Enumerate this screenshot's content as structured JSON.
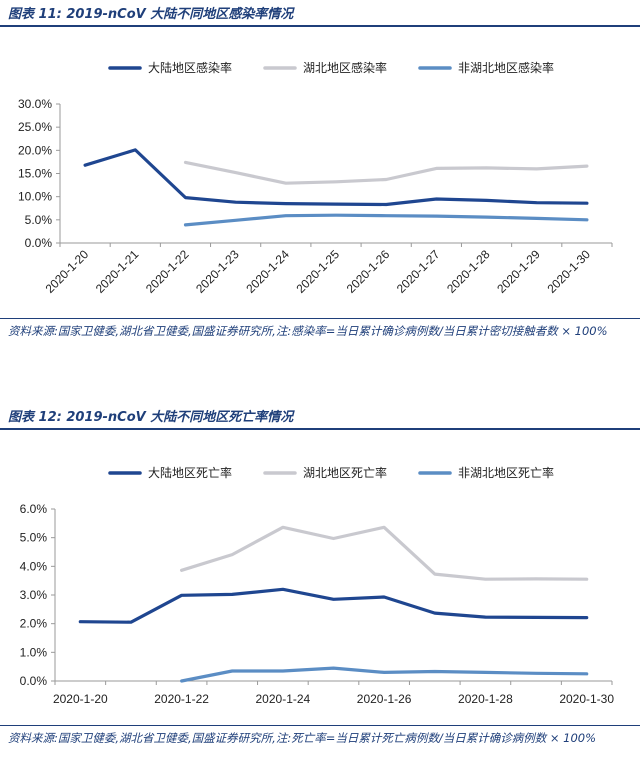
{
  "figures": [
    {
      "title": "图表 11:  2019-nCoV 大陆不同地区感染率情况",
      "source": "资料来源:国家卫健委,湖北省卫健委,国盛证券研究所,注:感染率=当日累计确诊病例数/当日累计密切接触者数 × 100%"
    },
    {
      "title": "图表 12:  2019-nCoV 大陆不同地区死亡率情况",
      "source": "资料来源:国家卫健委,湖北省卫健委,国盛证券研究所,注:死亡率=当日累计死亡病例数/当日累计确诊病例数 × 100%"
    }
  ],
  "colors": {
    "mainland": "#1f4690",
    "hubei": "#c9c9cf",
    "non_hubei": "#5b8dc4",
    "rule": "#1f3f7a"
  },
  "chart_data": [
    {
      "type": "line",
      "title": "",
      "xlabel": "",
      "ylabel": "",
      "categories": [
        "2020-1-20",
        "2020-1-21",
        "2020-1-22",
        "2020-1-23",
        "2020-1-24",
        "2020-1-25",
        "2020-1-26",
        "2020-1-27",
        "2020-1-28",
        "2020-1-29",
        "2020-1-30"
      ],
      "tick_labels": [
        "2020-1-20",
        "2020-1-21",
        "2020-1-22",
        "2020-1-23",
        "2020-1-24",
        "2020-1-25",
        "2020-1-26",
        "2020-1-27",
        "2020-1-28",
        "2020-1-29",
        "2020-1-30"
      ],
      "ylim": [
        0,
        30
      ],
      "yticks": [
        "0.0%",
        "5.0%",
        "10.0%",
        "15.0%",
        "20.0%",
        "25.0%",
        "30.0%"
      ],
      "legend_position": "top",
      "grid": false,
      "series": [
        {
          "name": "大陆地区感染率",
          "color_key": "mainland",
          "values": [
            16.8,
            20.1,
            9.8,
            8.8,
            8.5,
            8.4,
            8.3,
            9.5,
            9.2,
            8.7,
            8.6
          ]
        },
        {
          "name": "湖北地区感染率",
          "color_key": "hubei",
          "values": [
            null,
            null,
            17.4,
            15.2,
            12.9,
            13.2,
            13.7,
            16.1,
            16.2,
            16.0,
            16.6
          ]
        },
        {
          "name": "非湖北地区感染率",
          "color_key": "non_hubei",
          "values": [
            null,
            null,
            3.9,
            4.9,
            5.9,
            6.0,
            5.9,
            5.8,
            5.6,
            5.3,
            5.0
          ]
        }
      ]
    },
    {
      "type": "line",
      "title": "",
      "xlabel": "",
      "ylabel": "",
      "categories": [
        "2020-1-20",
        "2020-1-21",
        "2020-1-22",
        "2020-1-23",
        "2020-1-24",
        "2020-1-25",
        "2020-1-26",
        "2020-1-27",
        "2020-1-28",
        "2020-1-29",
        "2020-1-30"
      ],
      "tick_labels": [
        "2020-1-20",
        "",
        "2020-1-22",
        "",
        "2020-1-24",
        "",
        "2020-1-26",
        "",
        "2020-1-28",
        "",
        "2020-1-30"
      ],
      "ylim": [
        0,
        6
      ],
      "yticks": [
        "0.0%",
        "1.0%",
        "2.0%",
        "3.0%",
        "4.0%",
        "5.0%",
        "6.0%"
      ],
      "legend_position": "top",
      "grid": false,
      "series": [
        {
          "name": "大陆地区死亡率",
          "color_key": "mainland",
          "values": [
            2.07,
            2.05,
            2.99,
            3.02,
            3.2,
            2.85,
            2.93,
            2.37,
            2.23,
            2.22,
            2.21
          ]
        },
        {
          "name": "湖北地区死亡率",
          "color_key": "hubei",
          "values": [
            null,
            null,
            3.86,
            4.41,
            5.36,
            4.97,
            5.36,
            3.73,
            3.55,
            3.56,
            3.55
          ]
        },
        {
          "name": "非湖北地区死亡率",
          "color_key": "non_hubei",
          "values": [
            null,
            null,
            0.0,
            0.35,
            0.35,
            0.45,
            0.3,
            0.33,
            0.3,
            0.27,
            0.25
          ]
        }
      ]
    }
  ]
}
